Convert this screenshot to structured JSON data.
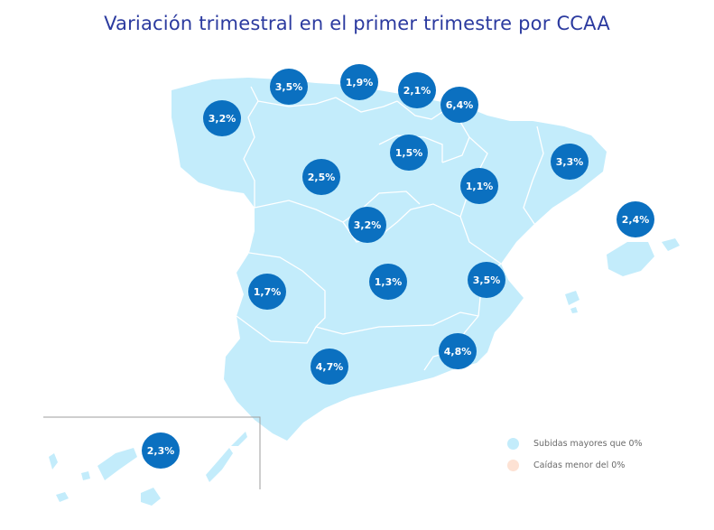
{
  "title": "Variación trimestral en el primer trimestre por CCAA",
  "colors": {
    "increase": "#c3ecfb",
    "decrease": "#fde2d4",
    "badge": "#0b70c0",
    "border": "#ffffff",
    "title": "#2b3a9f"
  },
  "regions": {
    "galicia": "3,2%",
    "asturias": "3,5%",
    "cantabria": "1,9%",
    "pais_vasco": "2,1%",
    "navarra": "6,4%",
    "la_rioja": "1,5%",
    "castilla_y_leon": "2,5%",
    "aragon": "1,1%",
    "cataluna": "3,3%",
    "baleares": "2,4%",
    "madrid": "3,2%",
    "castilla_la_mancha": "1,3%",
    "extremadura": "1,7%",
    "comunidad_valenciana": "3,5%",
    "murcia": "4,8%",
    "andalucia": "4,7%",
    "canarias": "2,3%"
  },
  "legend": {
    "increase_label": "Subidas mayores que 0%",
    "decrease_label": "Caídas menor del 0%"
  }
}
